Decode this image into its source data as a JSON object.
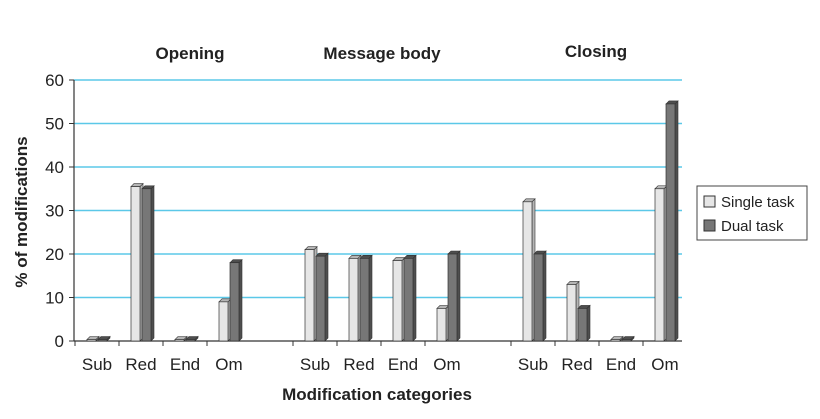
{
  "chart_data": {
    "type": "bar",
    "groups": [
      "Opening",
      "Message body",
      "Closing"
    ],
    "categories": [
      "Sub",
      "Red",
      "End",
      "Om"
    ],
    "series": [
      {
        "name": "Single task",
        "color": "#e6e6e6",
        "values": [
          [
            0,
            35.5,
            0,
            9
          ],
          [
            21,
            19,
            18.5,
            7.5
          ],
          [
            32,
            13,
            0,
            35
          ]
        ]
      },
      {
        "name": "Dual task",
        "color": "#777777",
        "values": [
          [
            0,
            35,
            0,
            18
          ],
          [
            19.5,
            19,
            19,
            20
          ],
          [
            20,
            7.5,
            0,
            54.5
          ]
        ]
      }
    ],
    "xlabel": "Modification categories",
    "ylabel": "% of modifications",
    "ylim": [
      0,
      60
    ],
    "yticks": [
      0,
      10,
      20,
      30,
      40,
      50,
      60
    ],
    "grid": true,
    "grid_color": "#5bc8e8",
    "legend_position": "right"
  }
}
